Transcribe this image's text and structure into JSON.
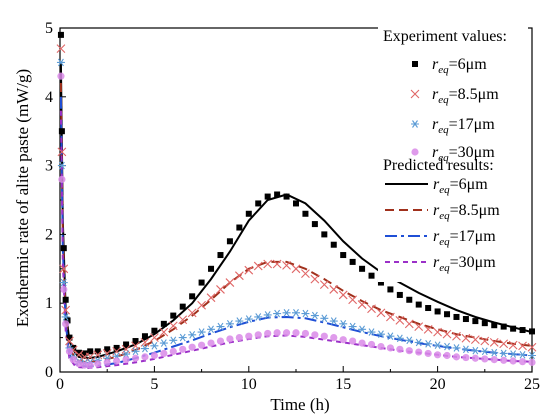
{
  "chart_data": {
    "type": "scatter",
    "title": "",
    "xlabel": "Time (h)",
    "ylabel": "Exothermic rate of alite paste (mW/g)",
    "xlim": [
      0,
      25
    ],
    "ylim": [
      0,
      5
    ],
    "xticks": [
      "0",
      "5",
      "10",
      "15",
      "20",
      "25"
    ],
    "yticks": [
      "0",
      "1",
      "2",
      "3",
      "4",
      "5"
    ],
    "grid": false,
    "legend_position": "right",
    "legend_groups": [
      {
        "title": "Experiment values:",
        "kind": "markers"
      },
      {
        "title": "Predicted results:",
        "kind": "lines"
      }
    ],
    "experiment": [
      {
        "label": "r",
        "sub": "eq",
        "value": "=6μm",
        "marker": "square",
        "color": "#000000",
        "x": [
          0.05,
          0.1,
          0.2,
          0.3,
          0.4,
          0.5,
          0.7,
          1.0,
          1.3,
          1.6,
          2.0,
          2.5,
          3.0,
          3.5,
          4.0,
          4.5,
          5.0,
          5.5,
          6.0,
          6.5,
          7.0,
          7.5,
          8.0,
          8.5,
          9.0,
          9.5,
          10.0,
          10.5,
          11.0,
          11.5,
          12.0,
          12.5,
          13.0,
          13.5,
          14.0,
          14.5,
          15.0,
          15.5,
          16.0,
          16.5,
          17.0,
          17.5,
          18.0,
          18.5,
          19.0,
          19.5,
          20.0,
          20.5,
          21.0,
          21.5,
          22.0,
          22.5,
          23.0,
          23.5,
          24.0,
          24.5,
          25.0
        ],
        "y": [
          4.9,
          3.5,
          1.8,
          1.05,
          0.75,
          0.5,
          0.35,
          0.28,
          0.27,
          0.3,
          0.3,
          0.33,
          0.35,
          0.4,
          0.45,
          0.52,
          0.6,
          0.7,
          0.82,
          0.95,
          1.1,
          1.3,
          1.5,
          1.7,
          1.9,
          2.1,
          2.3,
          2.45,
          2.55,
          2.58,
          2.55,
          2.45,
          2.3,
          2.15,
          2.0,
          1.85,
          1.7,
          1.6,
          1.5,
          1.4,
          1.3,
          1.2,
          1.12,
          1.05,
          0.98,
          0.93,
          0.88,
          0.84,
          0.8,
          0.77,
          0.74,
          0.71,
          0.68,
          0.66,
          0.63,
          0.61,
          0.59
        ]
      },
      {
        "label": "r",
        "sub": "eq",
        "value": "=8.5μm",
        "marker": "cross",
        "color": "#e06666",
        "x": [
          0.05,
          0.1,
          0.2,
          0.3,
          0.5,
          0.7,
          1.0,
          1.3,
          1.6,
          2.0,
          2.5,
          3.0,
          3.5,
          4.0,
          4.5,
          5.0,
          5.5,
          6.0,
          6.5,
          7.0,
          7.5,
          8.0,
          8.5,
          9.0,
          9.5,
          10.0,
          10.5,
          11.0,
          11.5,
          12.0,
          12.5,
          13.0,
          13.5,
          14.0,
          14.5,
          15.0,
          15.5,
          16.0,
          16.5,
          17.0,
          17.5,
          18.0,
          18.5,
          19.0,
          19.5,
          20.0,
          20.5,
          21.0,
          21.5,
          22.0,
          22.5,
          23.0,
          23.5,
          24.0,
          24.5,
          25.0
        ],
        "y": [
          4.7,
          3.2,
          1.5,
          0.9,
          0.45,
          0.32,
          0.25,
          0.22,
          0.22,
          0.25,
          0.27,
          0.3,
          0.33,
          0.38,
          0.43,
          0.5,
          0.58,
          0.67,
          0.76,
          0.86,
          0.97,
          1.08,
          1.2,
          1.3,
          1.4,
          1.48,
          1.54,
          1.57,
          1.57,
          1.55,
          1.5,
          1.43,
          1.35,
          1.27,
          1.2,
          1.12,
          1.05,
          0.98,
          0.92,
          0.86,
          0.8,
          0.75,
          0.7,
          0.66,
          0.62,
          0.58,
          0.55,
          0.52,
          0.49,
          0.47,
          0.45,
          0.43,
          0.41,
          0.39,
          0.38,
          0.36
        ]
      },
      {
        "label": "r",
        "sub": "eq",
        "value": "=17μm",
        "marker": "asterisk",
        "color": "#5b9bd5",
        "x": [
          0.05,
          0.1,
          0.2,
          0.3,
          0.5,
          0.7,
          1.0,
          1.3,
          1.6,
          2.0,
          2.5,
          3.0,
          3.5,
          4.0,
          4.5,
          5.0,
          5.5,
          6.0,
          6.5,
          7.0,
          7.5,
          8.0,
          8.5,
          9.0,
          9.5,
          10.0,
          10.5,
          11.0,
          11.5,
          12.0,
          12.5,
          13.0,
          13.5,
          14.0,
          14.5,
          15.0,
          15.5,
          16.0,
          16.5,
          17.0,
          17.5,
          18.0,
          18.5,
          19.0,
          19.5,
          20.0,
          20.5,
          21.0,
          21.5,
          22.0,
          22.5,
          23.0,
          23.5,
          24.0,
          24.5,
          25.0
        ],
        "y": [
          4.5,
          3.0,
          1.3,
          0.8,
          0.35,
          0.22,
          0.15,
          0.13,
          0.14,
          0.17,
          0.2,
          0.23,
          0.26,
          0.3,
          0.34,
          0.38,
          0.42,
          0.46,
          0.5,
          0.54,
          0.58,
          0.62,
          0.66,
          0.7,
          0.74,
          0.77,
          0.8,
          0.83,
          0.85,
          0.86,
          0.86,
          0.85,
          0.82,
          0.78,
          0.74,
          0.7,
          0.66,
          0.62,
          0.58,
          0.55,
          0.52,
          0.49,
          0.46,
          0.43,
          0.41,
          0.39,
          0.37,
          0.35,
          0.33,
          0.31,
          0.3,
          0.28,
          0.27,
          0.26,
          0.25,
          0.24
        ]
      },
      {
        "label": "r",
        "sub": "eq",
        "value": "=30μm",
        "marker": "circle",
        "color": "#d98ae8",
        "x": [
          0.05,
          0.1,
          0.2,
          0.3,
          0.5,
          0.7,
          1.0,
          1.3,
          1.6,
          2.0,
          2.5,
          3.0,
          3.5,
          4.0,
          4.5,
          5.0,
          5.5,
          6.0,
          6.5,
          7.0,
          7.5,
          8.0,
          8.5,
          9.0,
          9.5,
          10.0,
          10.5,
          11.0,
          11.5,
          12.0,
          12.5,
          13.0,
          13.5,
          14.0,
          14.5,
          15.0,
          15.5,
          16.0,
          16.5,
          17.0,
          17.5,
          18.0,
          18.5,
          19.0,
          19.5,
          20.0,
          20.5,
          21.0,
          21.5,
          22.0,
          22.5,
          23.0,
          23.5,
          24.0,
          24.5,
          25.0
        ],
        "y": [
          4.3,
          2.8,
          1.2,
          0.7,
          0.3,
          0.18,
          0.12,
          0.1,
          0.1,
          0.12,
          0.14,
          0.16,
          0.18,
          0.2,
          0.22,
          0.24,
          0.27,
          0.3,
          0.33,
          0.36,
          0.39,
          0.42,
          0.45,
          0.48,
          0.5,
          0.52,
          0.54,
          0.56,
          0.57,
          0.57,
          0.57,
          0.56,
          0.54,
          0.52,
          0.5,
          0.47,
          0.45,
          0.42,
          0.4,
          0.37,
          0.35,
          0.33,
          0.31,
          0.29,
          0.27,
          0.25,
          0.24,
          0.22,
          0.21,
          0.2,
          0.19,
          0.18,
          0.17,
          0.16,
          0.15,
          0.14
        ]
      }
    ],
    "predicted": [
      {
        "label": "r",
        "sub": "eq",
        "value": "=6μm",
        "dash": "solid",
        "color": "#000000",
        "x": [
          0.05,
          0.15,
          0.3,
          0.5,
          0.8,
          1.0,
          1.5,
          2,
          3,
          4,
          5,
          6,
          7,
          8,
          9,
          10,
          11,
          12,
          13,
          14,
          15,
          16,
          17,
          18,
          19,
          20,
          21,
          22,
          23,
          24,
          25
        ],
        "y": [
          4.5,
          2.2,
          0.9,
          0.45,
          0.28,
          0.22,
          0.2,
          0.22,
          0.3,
          0.4,
          0.55,
          0.75,
          1.0,
          1.35,
          1.75,
          2.2,
          2.5,
          2.58,
          2.45,
          2.2,
          1.9,
          1.65,
          1.45,
          1.3,
          1.15,
          1.02,
          0.9,
          0.8,
          0.72,
          0.65,
          0.58
        ]
      },
      {
        "label": "r",
        "sub": "eq",
        "value": "=8.5μm",
        "dash": "dash",
        "color": "#a0301c",
        "x": [
          0.05,
          0.15,
          0.3,
          0.5,
          0.8,
          1.0,
          1.5,
          2,
          3,
          4,
          5,
          6,
          7,
          8,
          9,
          10,
          11,
          12,
          13,
          14,
          15,
          16,
          17,
          18,
          19,
          20,
          21,
          22,
          23,
          24,
          25
        ],
        "y": [
          4.2,
          2.0,
          0.8,
          0.35,
          0.2,
          0.16,
          0.14,
          0.16,
          0.22,
          0.32,
          0.45,
          0.62,
          0.82,
          1.05,
          1.3,
          1.5,
          1.6,
          1.6,
          1.5,
          1.35,
          1.18,
          1.03,
          0.9,
          0.8,
          0.7,
          0.62,
          0.55,
          0.5,
          0.45,
          0.41,
          0.38
        ]
      },
      {
        "label": "r",
        "sub": "eq",
        "value": "=17μm",
        "dash": "dashdot",
        "color": "#1f4fd6",
        "x": [
          0.05,
          0.15,
          0.3,
          0.5,
          0.8,
          1.0,
          1.5,
          2,
          3,
          4,
          5,
          6,
          7,
          8,
          9,
          10,
          11,
          12,
          13,
          14,
          15,
          16,
          17,
          18,
          19,
          20,
          21,
          22,
          23,
          24,
          25
        ],
        "y": [
          4.0,
          1.8,
          0.7,
          0.25,
          0.12,
          0.09,
          0.08,
          0.09,
          0.13,
          0.2,
          0.28,
          0.37,
          0.46,
          0.56,
          0.65,
          0.73,
          0.79,
          0.8,
          0.78,
          0.72,
          0.65,
          0.58,
          0.52,
          0.47,
          0.42,
          0.38,
          0.34,
          0.31,
          0.28,
          0.26,
          0.24
        ]
      },
      {
        "label": "r",
        "sub": "eq",
        "value": "=30μm",
        "dash": "shortdash",
        "color": "#9b30c8",
        "x": [
          0.05,
          0.15,
          0.3,
          0.5,
          0.8,
          1.0,
          1.5,
          2,
          3,
          4,
          5,
          6,
          7,
          8,
          9,
          10,
          11,
          12,
          13,
          14,
          15,
          16,
          17,
          18,
          19,
          20,
          21,
          22,
          23,
          24,
          25
        ],
        "y": [
          3.8,
          1.6,
          0.6,
          0.2,
          0.09,
          0.07,
          0.06,
          0.07,
          0.1,
          0.14,
          0.19,
          0.25,
          0.31,
          0.37,
          0.43,
          0.48,
          0.52,
          0.53,
          0.51,
          0.47,
          0.43,
          0.39,
          0.35,
          0.31,
          0.28,
          0.25,
          0.22,
          0.2,
          0.18,
          0.16,
          0.15
        ]
      }
    ]
  }
}
